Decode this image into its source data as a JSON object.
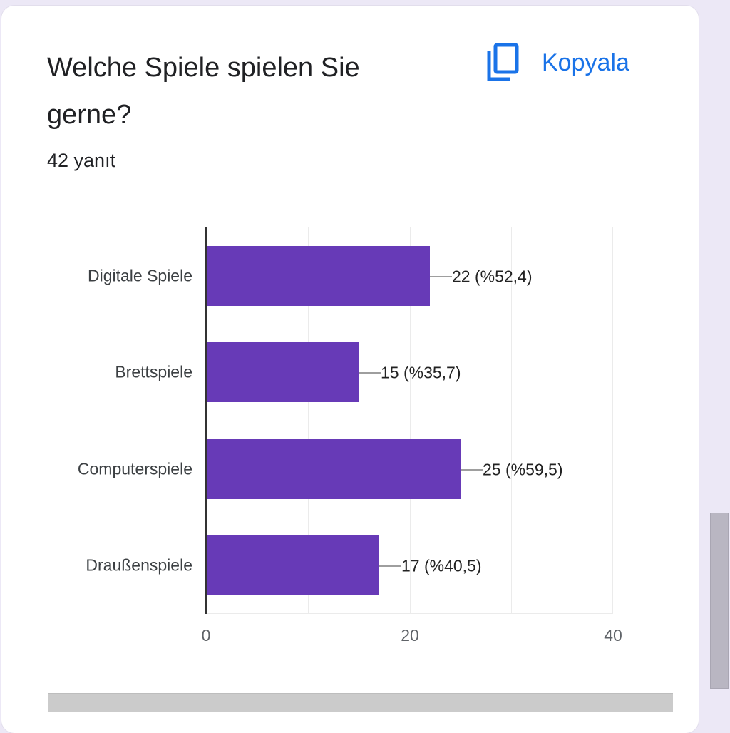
{
  "question": {
    "title": "Welche Spiele spielen Sie gerne?",
    "response_count": "42 yanıt",
    "copy_button": {
      "label": "Kopyala",
      "icon": "copy-icon"
    }
  },
  "colors": {
    "bar": "#673ab7",
    "accent": "#1a73e8",
    "background": "#ece8f6"
  },
  "chart_data": {
    "type": "bar",
    "orientation": "horizontal",
    "title": "Welche Spiele spielen Sie gerne?",
    "xlabel": "",
    "ylabel": "",
    "categories": [
      "Digitale Spiele",
      "Brettspiele",
      "Computerspiele",
      "Draußenspiele"
    ],
    "values": [
      22,
      15,
      25,
      17
    ],
    "percentages": [
      52.4,
      35.7,
      59.5,
      40.5
    ],
    "data_labels": [
      "22 (%52,4)",
      "15 (%35,7)",
      "25 (%59,5)",
      "17 (%40,5)"
    ],
    "xlim": [
      0,
      40
    ],
    "x_ticks": [
      "0",
      "20",
      "40"
    ],
    "grid": true,
    "legend": null,
    "total_responses": 42
  }
}
